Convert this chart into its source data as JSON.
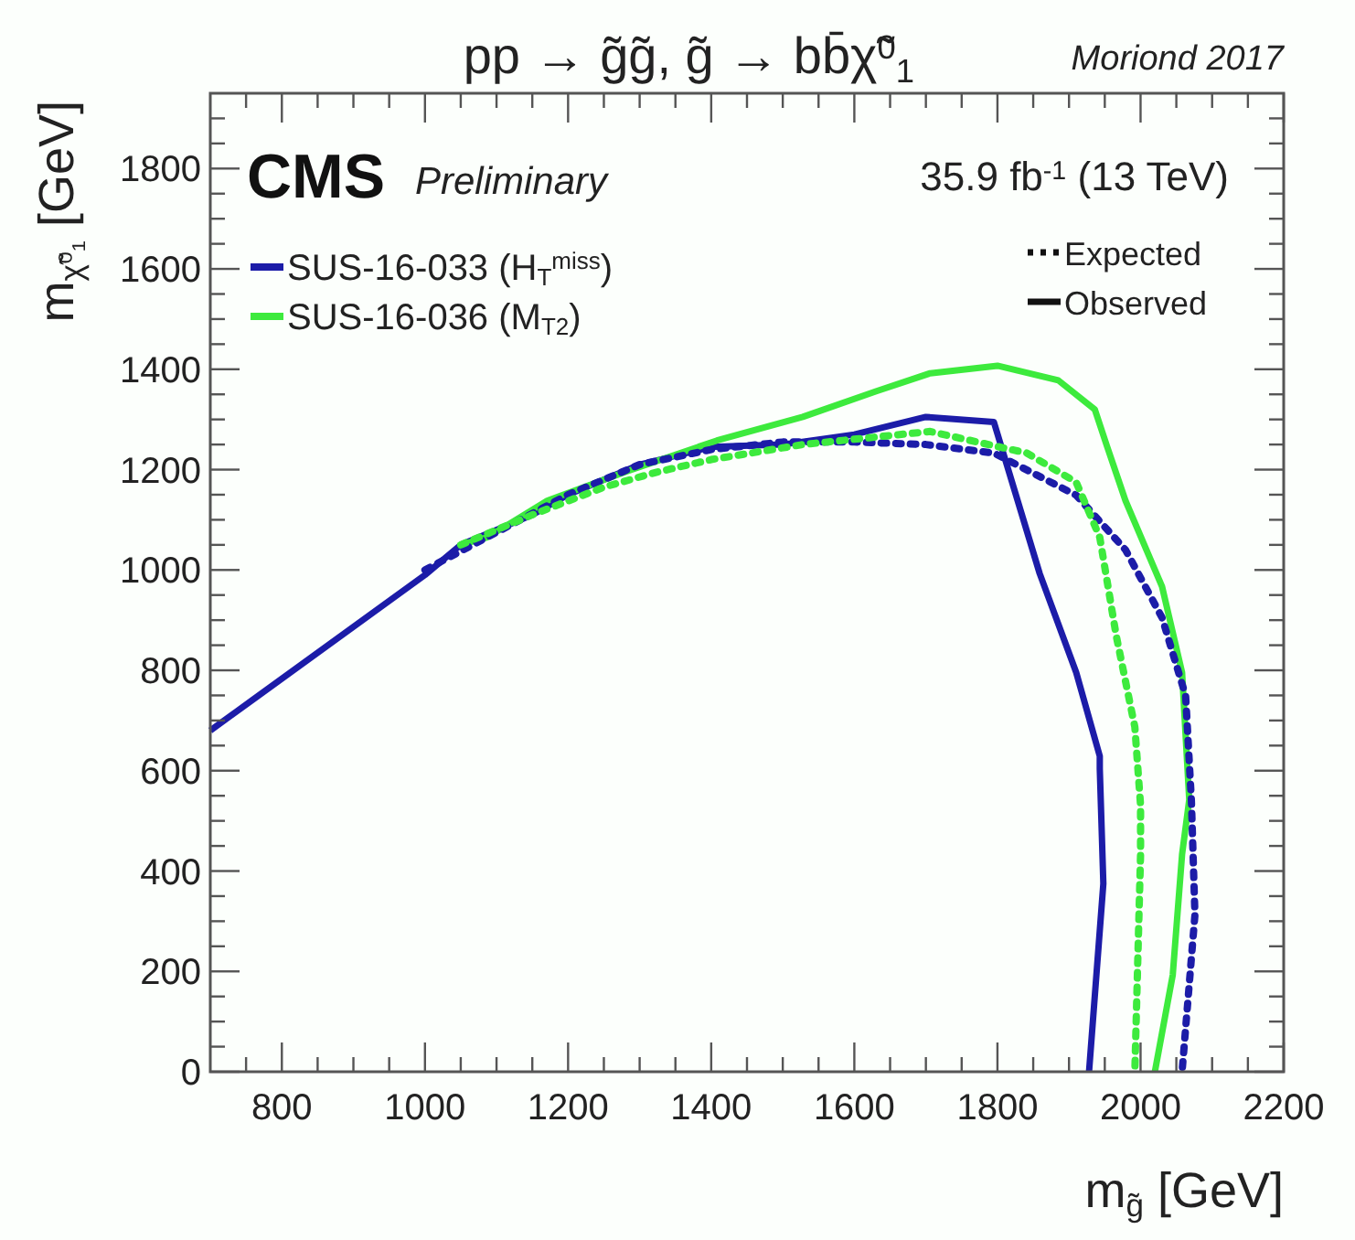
{
  "chart_data": {
    "type": "line",
    "title": "pp → g̃g̃,  g̃ → bb̄χ̃$^{0}$$_{1}$",
    "xlabel": "m$_{g̃}$ [GeV]",
    "ylabel": "m$_{χ̃⁰₁}$ [GeV]",
    "annotations": [
      "Moriond 2017",
      "CMS",
      "Preliminary",
      "35.9 fb$^{-1}$ (13 TeV)",
      "Expected",
      "Observed"
    ],
    "xlim": [
      700,
      2200
    ],
    "ylim": [
      0,
      1950
    ],
    "xticks": [
      {
        "value": 750,
        "label": null
      },
      800,
      {
        "value": 850,
        "label": null
      },
      {
        "value": 900,
        "label": null
      },
      {
        "value": 950,
        "label": null
      },
      1000,
      {
        "value": 1050,
        "label": null
      },
      {
        "value": 1100,
        "label": null
      },
      {
        "value": 1150,
        "label": null
      },
      1200,
      {
        "value": 1250,
        "label": null
      },
      {
        "value": 1300,
        "label": null
      },
      {
        "value": 1350,
        "label": null
      },
      1400,
      {
        "value": 1450,
        "label": null
      },
      {
        "value": 1500,
        "label": null
      },
      {
        "value": 1550,
        "label": null
      },
      1600,
      {
        "value": 1650,
        "label": null
      },
      {
        "value": 1700,
        "label": null
      },
      {
        "value": 1750,
        "label": null
      },
      1800,
      {
        "value": 1850,
        "label": null
      },
      {
        "value": 1900,
        "label": null
      },
      {
        "value": 1950,
        "label": null
      },
      2000,
      {
        "value": 2050,
        "label": null
      },
      {
        "value": 2100,
        "label": null
      },
      {
        "value": 2150,
        "label": null
      },
      2200
    ],
    "yticks": [
      0,
      {
        "value": 50,
        "label": null
      },
      {
        "value": 100,
        "label": null
      },
      {
        "value": 150,
        "label": null
      },
      200,
      {
        "value": 250,
        "label": null
      },
      {
        "value": 300,
        "label": null
      },
      {
        "value": 350,
        "label": null
      },
      400,
      {
        "value": 450,
        "label": null
      },
      {
        "value": 500,
        "label": null
      },
      {
        "value": 550,
        "label": null
      },
      600,
      {
        "value": 650,
        "label": null
      },
      {
        "value": 700,
        "label": null
      },
      {
        "value": 750,
        "label": null
      },
      800,
      {
        "value": 850,
        "label": null
      },
      {
        "value": 900,
        "label": null
      },
      {
        "value": 950,
        "label": null
      },
      1000,
      {
        "value": 1050,
        "label": null
      },
      {
        "value": 1100,
        "label": null
      },
      {
        "value": 1150,
        "label": null
      },
      1200,
      {
        "value": 1250,
        "label": null
      },
      {
        "value": 1300,
        "label": null
      },
      {
        "value": 1350,
        "label": null
      },
      1400,
      {
        "value": 1450,
        "label": null
      },
      {
        "value": 1500,
        "label": null
      },
      {
        "value": 1550,
        "label": null
      },
      1600,
      {
        "value": 1650,
        "label": null
      },
      {
        "value": 1700,
        "label": null
      },
      {
        "value": 1750,
        "label": null
      },
      1800,
      {
        "value": 1850,
        "label": null
      },
      {
        "value": 1900,
        "label": null
      }
    ],
    "grid": false,
    "legend": "top left",
    "marker": "none",
    "series": [
      {
        "name": "SUS-16-033 (H$_{T}$$^{miss}$)",
        "color": "#1c1ca8",
        "line_style": "solid",
        "x": [
          700,
          1000,
          1050,
          1100,
          1150,
          1200,
          1300,
          1400,
          1500,
          1600,
          1700,
          1795,
          1859,
          1910,
          1943,
          1943,
          1948,
          1928
        ],
        "values": [
          680,
          990,
          1050,
          1080,
          1110,
          1150,
          1210,
          1245,
          1250,
          1270,
          1305,
          1295,
          993,
          796,
          629,
          604,
          375,
          0
        ]
      },
      {
        "name": "SUS-16-036 (M$_{T2}$)",
        "color": "#3dea3d",
        "line_style": "solid",
        "x": [
          1050,
          1087,
          1171,
          1281,
          1408,
          1528,
          1630,
          1706,
          1800,
          1885,
          1936,
          1953,
          1979,
          2030,
          2058,
          2068,
          2058,
          2045,
          2020
        ],
        "values": [
          1050,
          1065,
          1138,
          1196,
          1258,
          1305,
          1356,
          1392,
          1407,
          1378,
          1320,
          1247,
          1138,
          967,
          796,
          542,
          433,
          193,
          0
        ]
      },
      {
        "color": "#1c1ca8",
        "line_style": "dotted",
        "x": [
          1000,
          1100,
          1200,
          1300,
          1400,
          1500,
          1600,
          1700,
          1795,
          1910,
          1979,
          2030,
          2063,
          2071,
          2076,
          2058
        ],
        "values": [
          1000,
          1075,
          1150,
          1210,
          1240,
          1255,
          1255,
          1250,
          1233,
          1149,
          1040,
          905,
          749,
          542,
          313,
          0
        ]
      },
      {
        "color": "#3dea3d",
        "line_style": "dotted",
        "x": [
          1050,
          1150,
          1250,
          1324,
          1400,
          1528,
          1706,
          1841,
          1910,
          1943,
          1966,
          1992,
          2000,
          2000,
          1992
        ],
        "values": [
          1050,
          1110,
          1165,
          1195,
          1220,
          1250,
          1276,
          1233,
          1175,
          1065,
          869,
          687,
          531,
          433,
          0
        ]
      }
    ]
  }
}
